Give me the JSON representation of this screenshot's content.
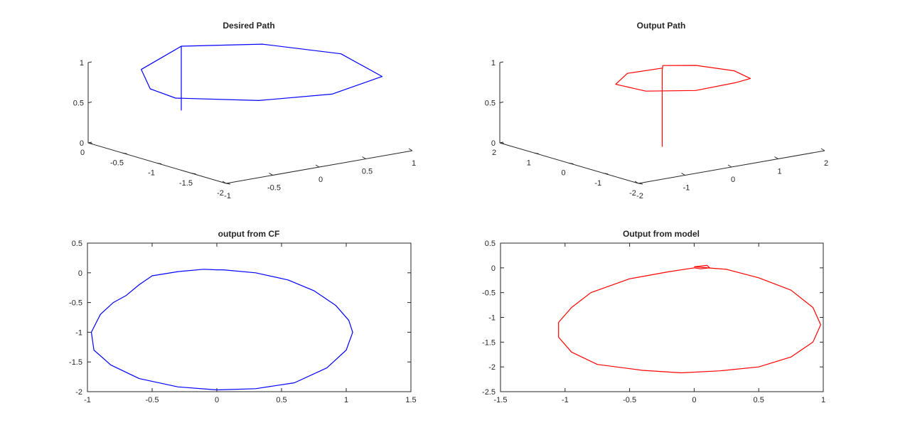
{
  "chart_data": [
    {
      "type": "line",
      "projection": "3d",
      "title": "Desired Path",
      "color": "#0000ff",
      "z_ticks": [
        "0",
        "0.5",
        "1"
      ],
      "x_ticks": [
        "0",
        "-0.5",
        "-1",
        "-1.5",
        "-2"
      ],
      "y_ticks": [
        "-1",
        "-0.5",
        "0",
        "0.5",
        "1"
      ],
      "series": [
        {
          "x": [
            0,
            0,
            -0.5,
            -1.1,
            -1.9,
            -2.05,
            -1.8,
            -1.2,
            -0.9,
            -0.5,
            0
          ],
          "y": [
            0,
            0,
            0.5,
            0.9,
            0.75,
            0.1,
            -0.5,
            -0.95,
            -1.0,
            -0.8,
            0
          ],
          "z": [
            0.2,
            1.0,
            1.05,
            1.0,
            0.95,
            0.9,
            0.88,
            0.85,
            0.9,
            1.0,
            1.0
          ]
        }
      ]
    },
    {
      "type": "line",
      "projection": "3d",
      "title": "Output Path",
      "color": "#ff0000",
      "z_ticks": [
        "0",
        "0.5",
        "1"
      ],
      "x_ticks": [
        "2",
        "1",
        "0",
        "-1",
        "-2"
      ],
      "y_ticks": [
        "-2",
        "-1",
        "0",
        "1",
        "2"
      ],
      "series": [
        {
          "x": [
            0,
            0,
            0.05,
            -0.3,
            -0.8,
            -1.2,
            -1.3,
            -1.1,
            -0.6,
            0,
            0.2,
            0
          ],
          "y": [
            0,
            0,
            0.05,
            0.5,
            0.95,
            1.0,
            0.6,
            -0.1,
            -0.8,
            -1.0,
            -0.6,
            0
          ],
          "z": [
            0,
            0.95,
            1.0,
            1.0,
            0.95,
            0.9,
            0.9,
            0.85,
            0.85,
            0.88,
            0.95,
            0.98
          ]
        }
      ]
    },
    {
      "type": "line",
      "title": "output from CF",
      "color": "#0000ff",
      "xlim": [
        -1,
        1.5
      ],
      "ylim": [
        -2,
        0.5
      ],
      "x_ticks": [
        "-1",
        "-0.5",
        "0",
        "0.5",
        "1",
        "1.5"
      ],
      "y_ticks": [
        "-2",
        "-1.5",
        "-1",
        "-0.5",
        "0",
        "0.5"
      ],
      "series": [
        {
          "x": [
            0.05,
            0.3,
            0.55,
            0.75,
            0.92,
            1.02,
            1.05,
            1.0,
            0.85,
            0.6,
            0.3,
            0.0,
            -0.3,
            -0.6,
            -0.82,
            -0.95,
            -0.97,
            -0.9,
            -0.8,
            -0.7,
            -0.6,
            -0.5,
            -0.3,
            -0.1,
            0.0,
            0.05
          ],
          "y": [
            0.05,
            0.0,
            -0.12,
            -0.3,
            -0.55,
            -0.8,
            -1.0,
            -1.3,
            -1.6,
            -1.85,
            -1.95,
            -1.97,
            -1.92,
            -1.78,
            -1.55,
            -1.3,
            -1.0,
            -0.7,
            -0.5,
            -0.38,
            -0.2,
            -0.05,
            0.02,
            0.06,
            0.05,
            0.05
          ]
        }
      ]
    },
    {
      "type": "line",
      "title": "Output from model",
      "color": "#ff0000",
      "xlim": [
        -1.5,
        1
      ],
      "ylim": [
        -2.5,
        0.5
      ],
      "x_ticks": [
        "-1.5",
        "-1",
        "-0.5",
        "0",
        "0.5",
        "1"
      ],
      "y_ticks": [
        "-2.5",
        "-2",
        "-1.5",
        "-1",
        "-0.5",
        "0",
        "0.5"
      ],
      "series": [
        {
          "x": [
            0.0,
            0.1,
            0.12,
            0.05,
            0.0,
            -0.2,
            -0.5,
            -0.8,
            -0.95,
            -1.05,
            -1.05,
            -0.95,
            -0.75,
            -0.4,
            -0.1,
            0.2,
            0.5,
            0.75,
            0.92,
            0.98,
            0.92,
            0.75,
            0.5,
            0.25,
            0.0
          ],
          "y": [
            0.02,
            0.05,
            0.0,
            -0.02,
            0.0,
            -0.08,
            -0.22,
            -0.5,
            -0.8,
            -1.1,
            -1.4,
            -1.7,
            -1.95,
            -2.07,
            -2.12,
            -2.08,
            -2.0,
            -1.8,
            -1.5,
            -1.15,
            -0.8,
            -0.45,
            -0.2,
            -0.03,
            0.02
          ]
        }
      ]
    }
  ]
}
